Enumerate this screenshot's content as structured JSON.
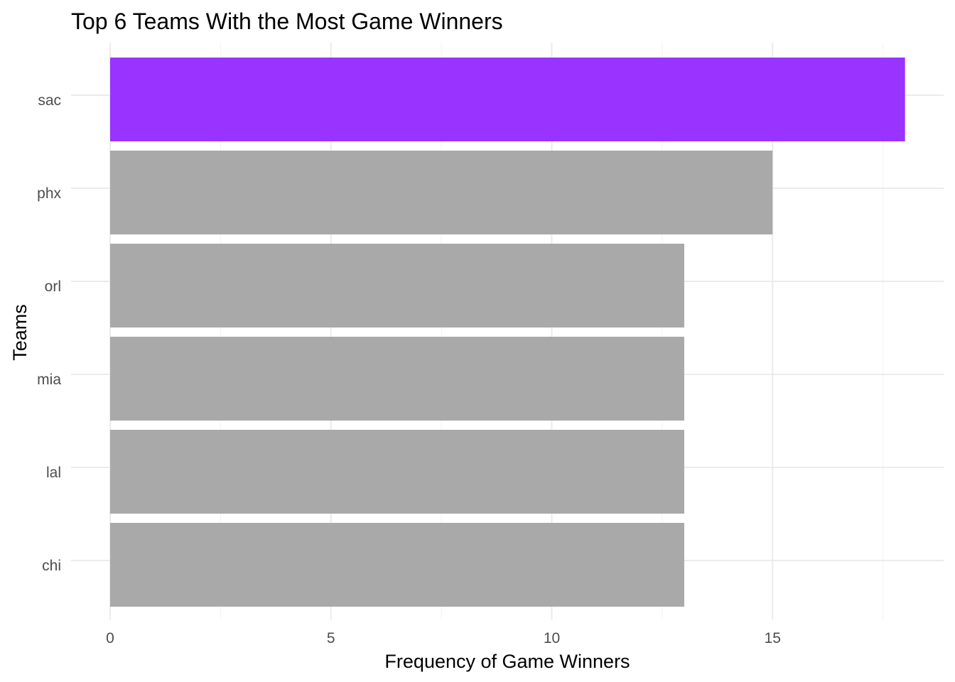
{
  "chart_data": {
    "type": "bar",
    "orientation": "horizontal",
    "title": "Top 6 Teams With the Most Game Winners",
    "xlabel": "Frequency of Game Winners",
    "ylabel": "Teams",
    "categories": [
      "sac",
      "phx",
      "orl",
      "mia",
      "lal",
      "chi"
    ],
    "values": [
      18,
      15,
      13,
      13,
      13,
      13
    ],
    "colors": [
      "#9933ff",
      "#a9a9a9",
      "#a9a9a9",
      "#a9a9a9",
      "#a9a9a9",
      "#a9a9a9"
    ],
    "highlight_color": "#9933ff",
    "default_color": "#a9a9a9",
    "xlim": [
      0,
      18.9
    ],
    "xticks": [
      0,
      5,
      10,
      15
    ],
    "grid": true,
    "legend": "none"
  }
}
